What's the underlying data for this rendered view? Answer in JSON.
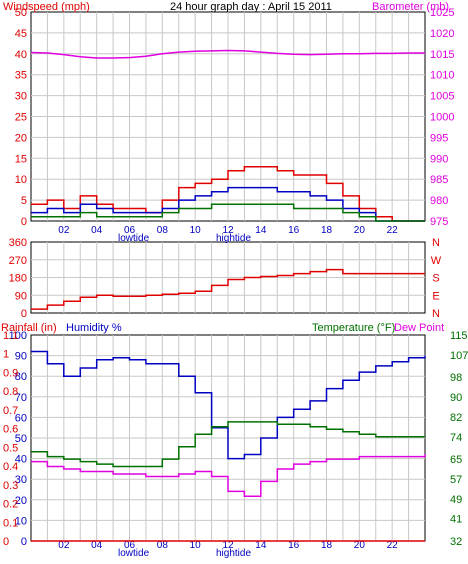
{
  "title": "24 hour graph day : April 15 2011",
  "colors": {
    "red": "#e00000",
    "magenta": "#e000e0",
    "blue": "#0000c0",
    "green": "#007000",
    "black": "#000000",
    "grid": "#c8c8c8"
  },
  "x_ticks": [
    "02",
    "04",
    "06",
    "08",
    "10",
    "12",
    "14",
    "16",
    "18",
    "20",
    "22"
  ],
  "tide_labels": {
    "low": "lowtide",
    "high": "hightide"
  },
  "chart_data": [
    {
      "type": "line",
      "panel": "wind_barometer",
      "left_axis": {
        "label": "Windspeed (mph)",
        "ticks": [
          0,
          5,
          10,
          15,
          20,
          25,
          30,
          35,
          40,
          45,
          50
        ],
        "ylim": [
          0,
          50
        ]
      },
      "right_axis": {
        "label": "Barometer (mb)",
        "ticks": [
          975,
          980,
          985,
          990,
          995,
          1000,
          1005,
          1010,
          1015,
          1020,
          1025
        ],
        "ylim": [
          975,
          1025
        ]
      },
      "x": [
        0,
        1,
        2,
        3,
        4,
        5,
        6,
        7,
        8,
        9,
        10,
        11,
        12,
        13,
        14,
        15,
        16,
        17,
        18,
        19,
        20,
        21,
        22,
        23,
        24
      ],
      "series": [
        {
          "color": "#e000e0",
          "axis": "right",
          "values": [
            1015.3,
            1015.2,
            1014.8,
            1014.3,
            1014.0,
            1014.0,
            1014.1,
            1014.4,
            1015.0,
            1015.4,
            1015.6,
            1015.7,
            1015.8,
            1015.7,
            1015.4,
            1015.1,
            1014.9,
            1014.8,
            1014.9,
            1015.0,
            1015.0,
            1015.1,
            1015.1,
            1015.2,
            1015.2
          ]
        },
        {
          "color": "#e00000",
          "axis": "left",
          "values": [
            4,
            5,
            3,
            6,
            4,
            3,
            3,
            2,
            5,
            8,
            9,
            10,
            12,
            13,
            13,
            12,
            11,
            11,
            9,
            6,
            3,
            1,
            0,
            0,
            0
          ]
        },
        {
          "color": "#0000c0",
          "axis": "left",
          "values": [
            2,
            3,
            2,
            4,
            3,
            2,
            2,
            2,
            3,
            5,
            6,
            7,
            8,
            8,
            8,
            7,
            7,
            6,
            5,
            3,
            2,
            0,
            0,
            0,
            0
          ]
        },
        {
          "color": "#007000",
          "axis": "left",
          "values": [
            1,
            1,
            1,
            2,
            1,
            1,
            1,
            1,
            2,
            3,
            3,
            4,
            4,
            4,
            4,
            4,
            3,
            3,
            3,
            2,
            1,
            0,
            0,
            0,
            0
          ]
        }
      ]
    },
    {
      "type": "line",
      "panel": "wind_direction",
      "left_axis": {
        "ticks": [
          0,
          90,
          180,
          270,
          360
        ],
        "ylim": [
          0,
          360
        ]
      },
      "right_axis": {
        "ticks": [
          "N",
          "W",
          "S",
          "E",
          "N"
        ]
      },
      "x": [
        0,
        1,
        2,
        3,
        4,
        5,
        6,
        7,
        8,
        9,
        10,
        11,
        12,
        13,
        14,
        15,
        16,
        17,
        18,
        19,
        20,
        21,
        22,
        23,
        24
      ],
      "series": [
        {
          "color": "#e00000",
          "values": [
            20,
            40,
            60,
            80,
            90,
            85,
            85,
            90,
            95,
            100,
            110,
            140,
            170,
            180,
            185,
            190,
            200,
            210,
            220,
            200,
            200,
            200,
            200,
            200,
            200
          ]
        }
      ]
    },
    {
      "type": "line",
      "panel": "temp_humidity",
      "labels": {
        "rainfall": "Rainfall (in)",
        "humidity": "Humidity %",
        "temperature": "Temperature (°F)",
        "dewpoint": "Dew Point"
      },
      "left_axis_humidity": {
        "ticks": [
          0,
          10,
          20,
          30,
          40,
          50,
          60,
          70,
          80,
          90,
          100
        ],
        "ylim": [
          0,
          100
        ]
      },
      "left_axis_rain": {
        "ticks": [
          0,
          0.1,
          0.2,
          0.3,
          0.4,
          0.5,
          0.6,
          0.7,
          0.8,
          0.9,
          1.0,
          1.1
        ]
      },
      "right_axis_temp": {
        "ticks": [
          32,
          41,
          49,
          57,
          65,
          74,
          82,
          90,
          98,
          107,
          115
        ],
        "ylim": [
          32,
          115
        ]
      },
      "x": [
        0,
        1,
        2,
        3,
        4,
        5,
        6,
        7,
        8,
        9,
        10,
        11,
        12,
        13,
        14,
        15,
        16,
        17,
        18,
        19,
        20,
        21,
        22,
        23,
        24
      ],
      "series": [
        {
          "color": "#0000c0",
          "axis": "humidity",
          "values": [
            92,
            86,
            80,
            84,
            88,
            89,
            88,
            86,
            86,
            80,
            72,
            55,
            40,
            42,
            50,
            60,
            64,
            68,
            74,
            78,
            82,
            85,
            87,
            89,
            90
          ]
        },
        {
          "color": "#007000",
          "axis": "temp",
          "values": [
            68,
            66,
            65,
            64,
            63,
            62,
            62,
            62,
            65,
            70,
            75,
            78,
            80,
            80,
            80,
            79,
            79,
            78,
            77,
            76,
            75,
            74,
            74,
            74,
            74
          ]
        },
        {
          "color": "#e000e0",
          "axis": "temp",
          "values": [
            64,
            62,
            61,
            60,
            60,
            59,
            59,
            58,
            58,
            59,
            60,
            58,
            52,
            50,
            56,
            61,
            63,
            64,
            65,
            65,
            66,
            66,
            66,
            66,
            67
          ]
        },
        {
          "color": "#e00000",
          "axis": "rain",
          "values": [
            0,
            0,
            0,
            0,
            0,
            0,
            0,
            0,
            0,
            0,
            0,
            0,
            0,
            0,
            0,
            0,
            0,
            0,
            0,
            0,
            0,
            0,
            0,
            0,
            0
          ]
        }
      ]
    }
  ]
}
